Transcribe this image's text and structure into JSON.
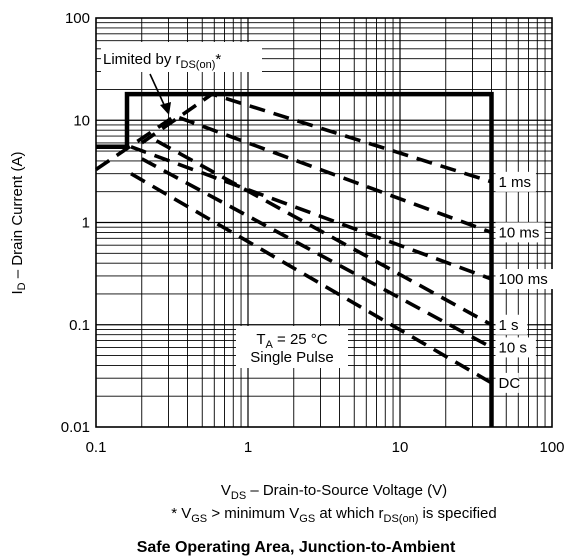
{
  "chart_data": {
    "type": "line",
    "x_scale": "log",
    "y_scale": "log",
    "xlim": [
      0.1,
      100
    ],
    "ylim": [
      0.01,
      100
    ],
    "grid": true,
    "x_ticks": [
      "0.1",
      "1",
      "10",
      "100"
    ],
    "y_ticks": [
      "0.01",
      "0.1",
      "1",
      "10",
      "100"
    ],
    "ylabel": {
      "main": "I",
      "sub": "D",
      "rest": " – Drain Current (A)"
    },
    "xlabel": {
      "main": "V",
      "sub": "DS",
      "rest": "  –  Drain-to-Source Voltage (V)"
    },
    "footnote": {
      "p1": "* V",
      "s1": "GS",
      "p2": " > minimum V",
      "s2": "GS",
      "p3": " at which r",
      "s3": "DS(on)",
      "p4": " is specified"
    },
    "caption": "Safe Operating Area, Junction-to-Ambient",
    "annotation_limited": {
      "text": "Limited by r",
      "sub": "DS(on)",
      "suffix": "*"
    },
    "conditions": {
      "ta_main": "T",
      "ta_sub": "A",
      "ta_rest": " = 25 °C",
      "pulse": "Single Pulse"
    },
    "boundaries": [
      {
        "name": "limit",
        "style": "solid",
        "points": [
          [
            0.1,
            5.5
          ],
          [
            0.16,
            5.5
          ],
          [
            0.16,
            18
          ],
          [
            40,
            18
          ],
          [
            40,
            0.01
          ]
        ]
      }
    ],
    "series": [
      {
        "name": "1 ms",
        "points": [
          [
            0.2,
            6
          ],
          [
            0.58,
            18
          ],
          [
            40,
            2.5
          ]
        ]
      },
      {
        "name": "10 ms",
        "points": [
          [
            0.1,
            3.3
          ],
          [
            0.33,
            11
          ],
          [
            40,
            0.8
          ]
        ]
      },
      {
        "name": "100 ms",
        "points": [
          [
            0.17,
            5.5
          ],
          [
            40,
            0.28
          ]
        ]
      },
      {
        "name": "1 s",
        "points": [
          [
            0.25,
            6.3
          ],
          [
            40,
            0.1
          ]
        ]
      },
      {
        "name": "10 s",
        "points": [
          [
            0.2,
            4.2
          ],
          [
            40,
            0.06
          ]
        ]
      },
      {
        "name": "DC",
        "points": [
          [
            0.17,
            3.0
          ],
          [
            40,
            0.027
          ]
        ]
      }
    ]
  }
}
